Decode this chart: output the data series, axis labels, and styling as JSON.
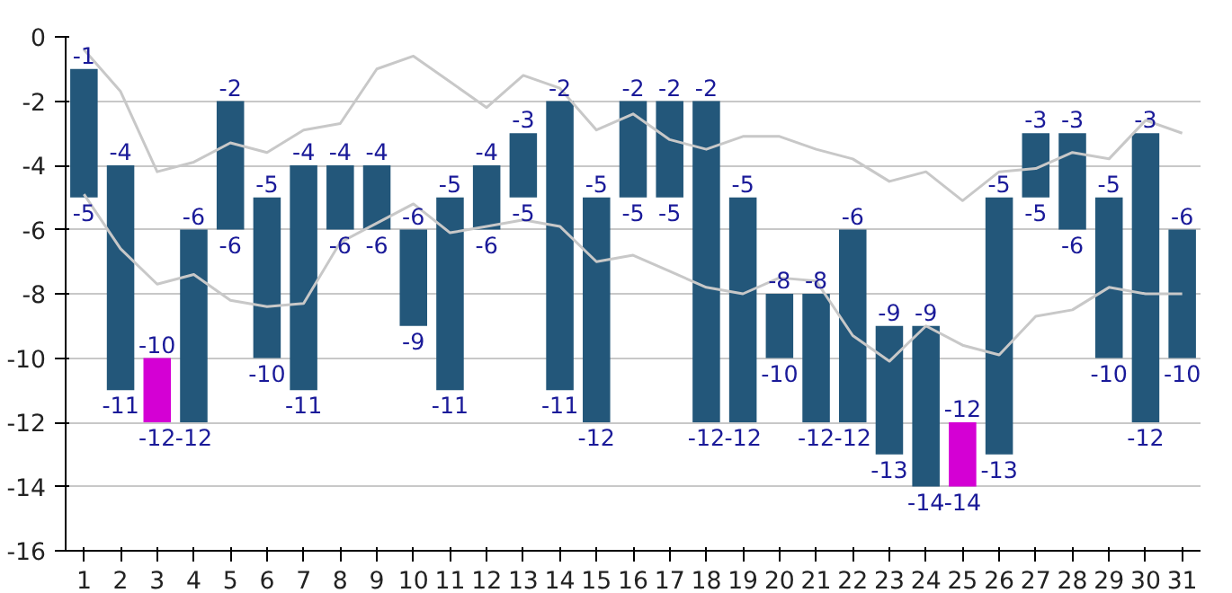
{
  "chart_data": {
    "type": "bar",
    "x": [
      1,
      2,
      3,
      4,
      5,
      6,
      7,
      8,
      9,
      10,
      11,
      12,
      13,
      14,
      15,
      16,
      17,
      18,
      19,
      20,
      21,
      22,
      23,
      24,
      25,
      26,
      27,
      28,
      29,
      30,
      31
    ],
    "series": [
      {
        "colors": [
          "#23577a",
          "#23577a",
          "#d400d4",
          "#23577a",
          "#23577a",
          "#23577a",
          "#23577a",
          "#23577a",
          "#23577a",
          "#23577a",
          "#23577a",
          "#23577a",
          "#23577a",
          "#23577a",
          "#23577a",
          "#23577a",
          "#23577a",
          "#23577a",
          "#23577a",
          "#23577a",
          "#23577a",
          "#23577a",
          "#23577a",
          "#23577a",
          "#d400d4",
          "#23577a",
          "#23577a",
          "#23577a",
          "#23577a",
          "#23577a",
          "#23577a"
        ],
        "base": [
          -5,
          -11,
          -12,
          -12,
          -6,
          -10,
          -11,
          -6,
          -6,
          -9,
          -11,
          -6,
          -5,
          -11,
          -12,
          -5,
          -5,
          -12,
          -12,
          -10,
          -12,
          -12,
          -13,
          -14,
          -14,
          -13,
          -5,
          -6,
          -10,
          -12,
          -10
        ],
        "values": [
          4,
          7,
          2,
          6,
          4,
          5,
          7,
          2,
          2,
          3,
          6,
          2,
          2,
          9,
          7,
          3,
          3,
          10,
          7,
          2,
          4,
          6,
          4,
          5,
          2,
          8,
          2,
          3,
          5,
          9,
          4
        ],
        "value_labels": [
          [
            "-1",
            "-5"
          ],
          [
            "-4",
            "-11"
          ],
          [
            "-10",
            "-12"
          ],
          [
            "-6",
            "-12"
          ],
          [
            "-2",
            "-6"
          ],
          [
            "-5",
            "-10"
          ],
          [
            "-4",
            "-11"
          ],
          [
            "-4",
            "-6"
          ],
          [
            "-4",
            "-6"
          ],
          [
            "-6",
            "-9"
          ],
          [
            "-5",
            "-11"
          ],
          [
            "-4",
            "-6"
          ],
          [
            "-3",
            "-5"
          ],
          [
            "-2",
            "-11"
          ],
          [
            "-5",
            "-12"
          ],
          [
            "-2",
            "-5"
          ],
          [
            "-2",
            "-5"
          ],
          [
            "-2",
            "-12"
          ],
          [
            "-5",
            "-12"
          ],
          [
            "-8",
            "-10"
          ],
          [
            "-8",
            "-12"
          ],
          [
            "-6",
            "-12"
          ],
          [
            "-9",
            "-13"
          ],
          [
            "-9",
            "-14"
          ],
          [
            "-12",
            "-14"
          ],
          [
            "-5",
            "-13"
          ],
          [
            "-3",
            "-5"
          ],
          [
            "-3",
            "-6"
          ],
          [
            "-5",
            "-10"
          ],
          [
            "-3",
            "-12"
          ],
          [
            "-6",
            "-10"
          ]
        ]
      },
      {
        "type": "line",
        "color": "#c8c8c8",
        "values": [
          -0.4,
          -1.7,
          -4.2,
          -3.9,
          -3.3,
          -3.6,
          -2.9,
          -2.7,
          -1.0,
          -0.6,
          -1.4,
          -2.2,
          -1.2,
          -1.6,
          -2.9,
          -2.4,
          -3.2,
          -3.5,
          -3.1,
          -3.1,
          -3.5,
          -3.8,
          -4.5,
          -4.2,
          -5.1,
          -4.2,
          -4.1,
          -3.6,
          -3.8,
          -2.6,
          -3.0
        ]
      },
      {
        "type": "line",
        "color": "#c8c8c8",
        "values": [
          -4.9,
          -6.6,
          -7.7,
          -7.4,
          -8.2,
          -8.4,
          -8.3,
          -6.4,
          -5.8,
          -5.2,
          -6.1,
          -5.9,
          -5.7,
          -5.9,
          -7.0,
          -6.8,
          -7.3,
          -7.8,
          -8.0,
          -7.5,
          -7.6,
          -9.3,
          -10.1,
          -9.0,
          -9.6,
          -9.9,
          -8.7,
          -8.5,
          -7.8,
          -8.0,
          -8.0
        ]
      }
    ],
    "xlim": [
      0.5,
      31.5
    ],
    "xticks": [
      1,
      2,
      3,
      4,
      5,
      6,
      7,
      8,
      9,
      10,
      11,
      12,
      13,
      14,
      15,
      16,
      17,
      18,
      19,
      20,
      21,
      22,
      23,
      24,
      25,
      26,
      27,
      28,
      29,
      30,
      31
    ],
    "ylim": [
      -16,
      0
    ],
    "yticks": [
      0,
      -2,
      -4,
      -6,
      -8,
      -10,
      -12,
      -14,
      -16
    ],
    "grid": "y"
  }
}
